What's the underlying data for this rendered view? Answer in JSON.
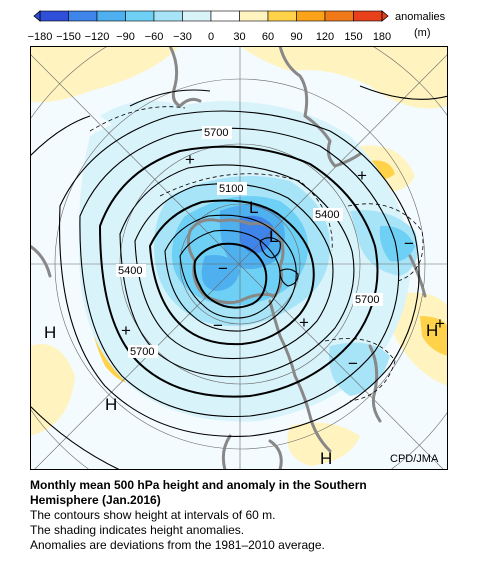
{
  "colorbar": {
    "labels": [
      "−180",
      "−150",
      "−120",
      "−90",
      "−60",
      "−30",
      "0",
      "30",
      "60",
      "90",
      "120",
      "150",
      "180"
    ],
    "colors": [
      "#2f4fd8",
      "#3f84ea",
      "#4fb0f0",
      "#6fd0f5",
      "#a8e4f7",
      "#d9f3fb",
      "#ffffff",
      "#fff3c0",
      "#ffd24a",
      "#f9a21a",
      "#f07a1a",
      "#e8401a"
    ],
    "unit_line1": "anomalies",
    "unit_line2": "(m)"
  },
  "map": {
    "contour_labels": [
      "5700",
      "5100",
      "5400",
      "5400",
      "5700",
      "5700"
    ],
    "pressure_markers": {
      "high": "H",
      "low": "L"
    },
    "anomaly_markers": {
      "plus": "+",
      "minus": "−"
    },
    "credit": "CPD/JMA"
  },
  "caption": {
    "title_line1": "Monthly mean 500 hPa height and anomaly in the Southern",
    "title_line2": "Hemisphere (Jan.2016)",
    "line1": "The contours show height at intervals of 60 m.",
    "line2": "The shading indicates height anomalies.",
    "line3": "Anomalies are deviations from the 1981–2010 average."
  }
}
